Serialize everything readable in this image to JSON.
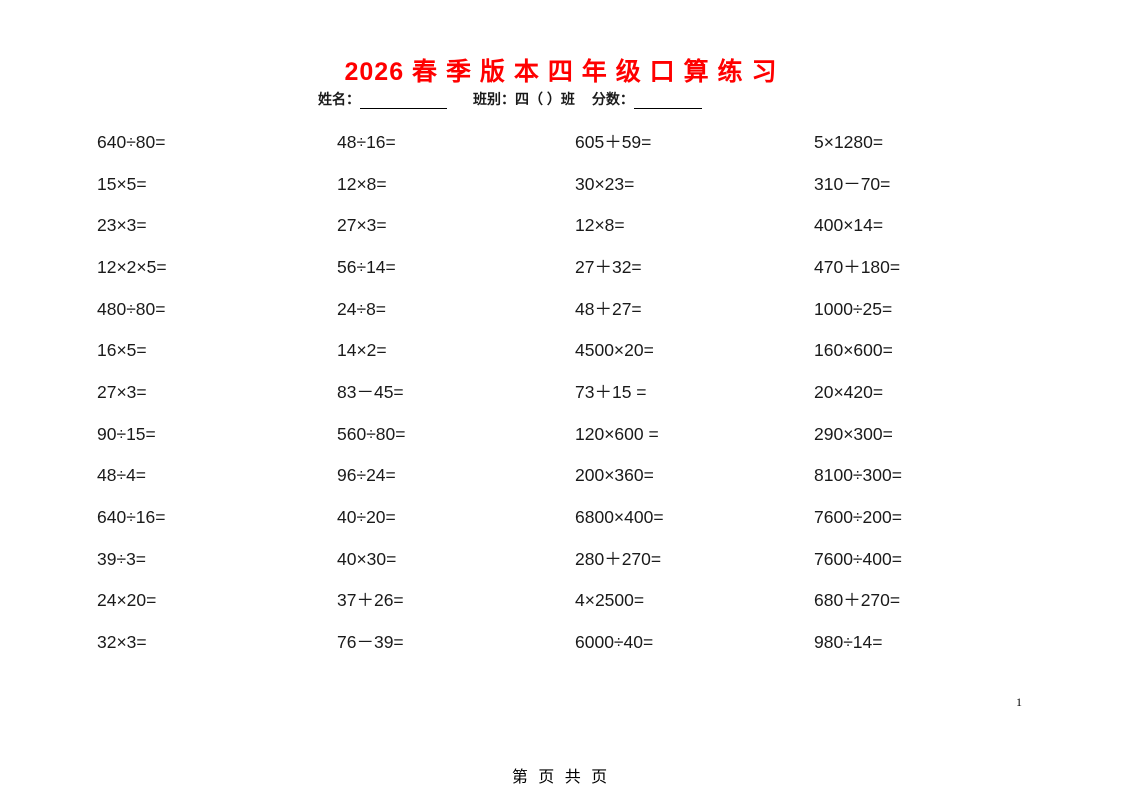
{
  "header": {
    "title": "2026 春 季 版 本 四 年 级 口 算 练 习",
    "title_color": "#ff0000",
    "name_label": "姓名：",
    "class_label": "班别：四（ ）班",
    "score_label": "分数："
  },
  "problems": {
    "columns": [
      {
        "items": [
          "640÷80=",
          "15×5=",
          "23×3=",
          "12×2×5=",
          "480÷80=",
          "16×5=",
          "27×3=",
          "90÷15=",
          "48÷4=",
          "640÷16=",
          "39÷3=",
          "24×20=",
          "32×3="
        ]
      },
      {
        "items": [
          "48÷16=",
          "12×8=",
          "27×3=",
          "56÷14=",
          "24÷8=",
          "14×2=",
          "83－45=",
          "560÷80=",
          "96÷24=",
          "40÷20=",
          "40×30=",
          "37＋26=",
          "76－39="
        ]
      },
      {
        "items": [
          "605＋59=",
          "30×23=",
          "12×8=",
          "27＋32=",
          "48＋27=",
          "4500×20=",
          "73＋15 =",
          "120×600 =",
          "200×360=",
          "6800×400=",
          "280＋270=",
          "4×2500=",
          "6000÷40="
        ]
      },
      {
        "items": [
          "5×1280=",
          "310－70=",
          "400×14=",
          "470＋180=",
          "1000÷25=",
          "160×600=",
          "20×420=",
          "290×300=",
          "8100÷300=",
          "7600÷200=",
          "7600÷400=",
          "680＋270=",
          "980÷14="
        ]
      }
    ]
  },
  "page_number": "1",
  "footer": {
    "text": "第 页 共  页"
  }
}
